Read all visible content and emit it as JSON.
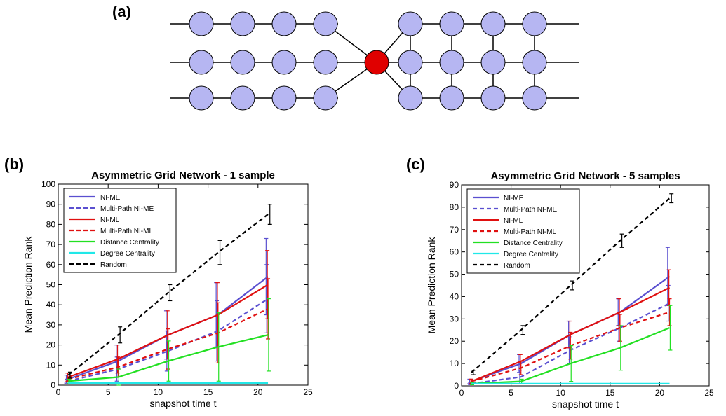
{
  "panel_labels": {
    "a": "(a)",
    "b": "(b)",
    "c": "(c)"
  },
  "colors": {
    "node_fill": "#b6b6f2",
    "node_stroke": "#000000",
    "center_fill": "#e00000",
    "NI-ME": "#5a4fd0",
    "NI-ML": "#e01010",
    "Distance": "#22e022",
    "Degree": "#20e8e8",
    "Random": "#000000"
  },
  "chart_data": [
    {
      "type": "line",
      "title": "Asymmetric Grid Network - 1 sample",
      "xlabel": "snapshot time t",
      "ylabel": "Mean Prediction Rank",
      "xlim": [
        0,
        25
      ],
      "ylim": [
        0,
        100
      ],
      "xticks": [
        "0",
        "5",
        "10",
        "15",
        "20",
        "25"
      ],
      "yticks": [
        "0",
        "10",
        "20",
        "30",
        "40",
        "50",
        "60",
        "70",
        "80",
        "90",
        "100"
      ],
      "legend_position": "top-left",
      "x": [
        1,
        6,
        11,
        16,
        21
      ],
      "series": [
        {
          "name": "NI-ME",
          "color": "#5a4fd0",
          "dash": "solid",
          "values": [
            3,
            12,
            25,
            35,
            54
          ],
          "err": [
            2,
            8,
            12,
            16,
            19
          ]
        },
        {
          "name": "Multi-Path NI-ME",
          "color": "#5a4fd0",
          "dash": "dashed",
          "values": [
            2,
            8,
            17,
            27,
            43
          ],
          "err": [
            1,
            6,
            10,
            15,
            17
          ]
        },
        {
          "name": "NI-ML",
          "color": "#e01010",
          "dash": "solid",
          "values": [
            4,
            13,
            25,
            35,
            50
          ],
          "err": [
            2,
            7,
            12,
            16,
            17
          ]
        },
        {
          "name": "Multi-Path NI-ML",
          "color": "#e01010",
          "dash": "dashed",
          "values": [
            3,
            9,
            18,
            26,
            38
          ],
          "err": [
            1,
            5,
            10,
            15,
            15
          ]
        },
        {
          "name": "Distance Centrality",
          "color": "#22e022",
          "dash": "solid",
          "values": [
            2,
            4,
            12,
            19,
            25
          ],
          "err": [
            1,
            4,
            10,
            17,
            18
          ]
        },
        {
          "name": "Degree Centrality",
          "color": "#20e8e8",
          "dash": "solid",
          "values": [
            1,
            1,
            1,
            1,
            1
          ],
          "err": [
            0,
            0,
            0,
            0,
            0
          ]
        },
        {
          "name": "Random",
          "color": "#000000",
          "dash": "dashed",
          "values": [
            5,
            25,
            46,
            66,
            85
          ],
          "err": [
            1.5,
            4,
            4,
            6,
            5
          ]
        }
      ]
    },
    {
      "type": "line",
      "title": "Asymmetric Grid Network - 5 samples",
      "xlabel": "snapshot time t",
      "ylabel": "Mean Prediction Rank",
      "xlim": [
        0,
        25
      ],
      "ylim": [
        0,
        90
      ],
      "xticks": [
        "0",
        "5",
        "10",
        "15",
        "20",
        "25"
      ],
      "yticks": [
        "0",
        "10",
        "20",
        "30",
        "40",
        "50",
        "60",
        "70",
        "80",
        "90"
      ],
      "legend_position": "top-left",
      "x": [
        1,
        6,
        11,
        16,
        21
      ],
      "series": [
        {
          "name": "NI-ME",
          "color": "#5a4fd0",
          "dash": "solid",
          "values": [
            2,
            10,
            23,
            33,
            49
          ],
          "err": [
            1,
            4,
            6,
            6,
            13
          ]
        },
        {
          "name": "Multi-Path NI-ME",
          "color": "#5a4fd0",
          "dash": "dashed",
          "values": [
            1,
            4,
            16,
            26,
            37
          ],
          "err": [
            0.5,
            3,
            6,
            6,
            8
          ]
        },
        {
          "name": "NI-ML",
          "color": "#e01010",
          "dash": "solid",
          "values": [
            2,
            11,
            23,
            33,
            44
          ],
          "err": [
            1,
            3,
            6,
            6,
            8
          ]
        },
        {
          "name": "Multi-Path NI-ML",
          "color": "#e01010",
          "dash": "dashed",
          "values": [
            2,
            8,
            18,
            26,
            33
          ],
          "err": [
            1,
            3,
            6,
            6,
            6
          ]
        },
        {
          "name": "Distance Centrality",
          "color": "#22e022",
          "dash": "solid",
          "values": [
            1,
            2,
            10,
            17,
            26
          ],
          "err": [
            0.5,
            1,
            8,
            10,
            10
          ]
        },
        {
          "name": "Degree Centrality",
          "color": "#20e8e8",
          "dash": "solid",
          "values": [
            1,
            1,
            1,
            1,
            1
          ],
          "err": [
            0,
            0,
            0,
            0,
            0
          ]
        },
        {
          "name": "Random",
          "color": "#000000",
          "dash": "dashed",
          "values": [
            6,
            25,
            45,
            65,
            84
          ],
          "err": [
            1,
            2,
            2,
            3,
            2
          ]
        }
      ]
    }
  ]
}
